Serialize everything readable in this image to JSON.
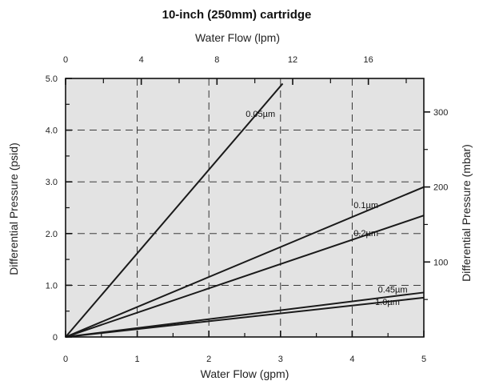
{
  "chart_data": {
    "type": "line",
    "title": "10-inch (250mm) cartridge",
    "xlabel": "Water Flow (gpm)",
    "ylabel": "Differential Pressure (psid)",
    "x2label": "Water Flow (lpm)",
    "y2label": "Differential Pressure (mbar)",
    "xlim": [
      0,
      5
    ],
    "ylim": [
      0,
      5
    ],
    "x2lim": [
      0,
      18.93
    ],
    "y2lim": [
      0,
      344.7
    ],
    "xticks": [
      "0",
      "1",
      "2",
      "3",
      "4",
      "5"
    ],
    "yticks": [
      "0",
      "1.0",
      "2.0",
      "3.0",
      "4.0",
      "5.0"
    ],
    "x2ticks": [
      {
        "value": 0,
        "label": "0"
      },
      {
        "value": 4,
        "label": "4"
      },
      {
        "value": 8,
        "label": "8"
      },
      {
        "value": 12,
        "label": "12"
      },
      {
        "value": 16,
        "label": "16"
      }
    ],
    "y2ticks": [
      {
        "value": 100,
        "label": "100"
      },
      {
        "value": 200,
        "label": "200"
      },
      {
        "value": 300,
        "label": "300"
      }
    ],
    "grid": true,
    "legend": "none",
    "series": [
      {
        "name": "0.05µm",
        "x": [
          0,
          3.03
        ],
        "y": [
          0,
          4.9
        ]
      },
      {
        "name": "0.1µm",
        "x": [
          0,
          5.0
        ],
        "y": [
          0,
          2.9
        ]
      },
      {
        "name": "0.2µm",
        "x": [
          0,
          5.0
        ],
        "y": [
          0,
          2.35
        ]
      },
      {
        "name": "0.45µm",
        "x": [
          0,
          5.0
        ],
        "y": [
          0,
          0.86
        ]
      },
      {
        "name": "1.0µm",
        "x": [
          0,
          5.0
        ],
        "y": [
          0,
          0.76
        ]
      }
    ],
    "colors": {
      "line": "#1a1a1a",
      "plot_bg": "#e3e3e3",
      "grid": "#222222"
    }
  }
}
